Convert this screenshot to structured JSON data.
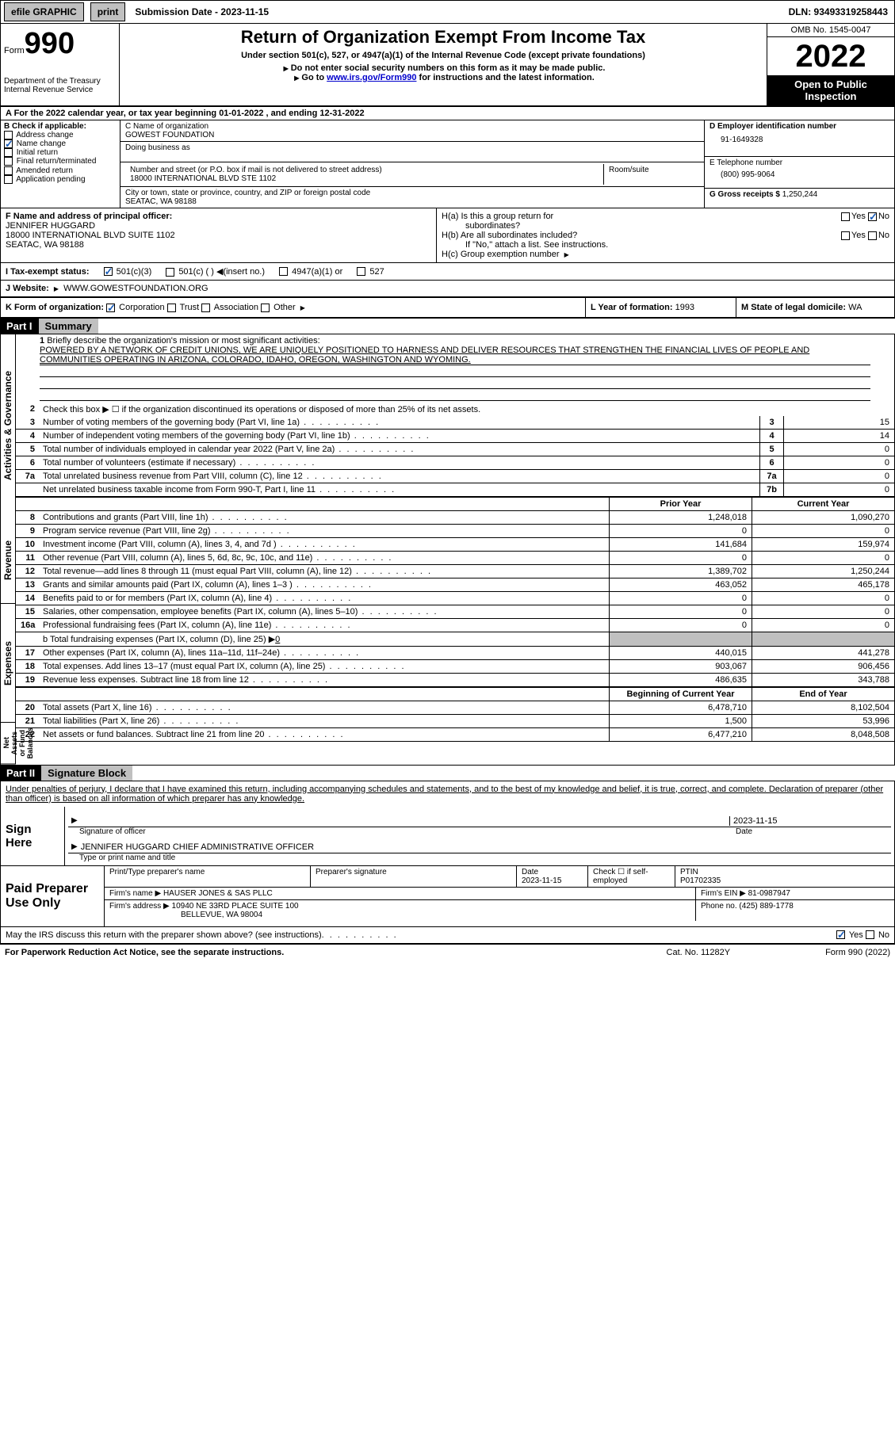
{
  "topbar": {
    "efile_label": "efile GRAPHIC",
    "print_label": "print",
    "submission_label": "Submission Date - 2023-11-15",
    "dln_label": "DLN: 93493319258443"
  },
  "header": {
    "form_word": "Form",
    "form_number": "990",
    "dept": "Department of the Treasury",
    "irs": "Internal Revenue Service",
    "title": "Return of Organization Exempt From Income Tax",
    "subtitle": "Under section 501(c), 527, or 4947(a)(1) of the Internal Revenue Code (except private foundations)",
    "instr1": "Do not enter social security numbers on this form as it may be made public.",
    "instr2_pre": "Go to ",
    "instr2_link": "www.irs.gov/Form990",
    "instr2_post": " for instructions and the latest information.",
    "omb": "OMB No. 1545-0047",
    "year": "2022",
    "open_public": "Open to Public Inspection"
  },
  "row_a": "A For the 2022 calendar year, or tax year beginning 01-01-2022    , and ending 12-31-2022",
  "section_b": {
    "b_label": "B Check if applicable:",
    "opts": [
      {
        "label": "Address change",
        "checked": false
      },
      {
        "label": "Name change",
        "checked": true
      },
      {
        "label": "Initial return",
        "checked": false
      },
      {
        "label": "Final return/terminated",
        "checked": false
      },
      {
        "label": "Amended return",
        "checked": false
      },
      {
        "label": "Application pending",
        "checked": false
      }
    ],
    "c_label": "C Name of organization",
    "c_val": "GOWEST FOUNDATION",
    "dba_label": "Doing business as",
    "addr_label": "Number and street (or P.O. box if mail is not delivered to street address)",
    "room_label": "Room/suite",
    "addr_val": "18000 INTERNATIONAL BLVD STE 1102",
    "city_label": "City or town, state or province, country, and ZIP or foreign postal code",
    "city_val": "SEATAC, WA  98188",
    "d_label": "D Employer identification number",
    "d_val": "91-1649328",
    "e_label": "E Telephone number",
    "e_val": "(800) 995-9064",
    "g_label": "G Gross receipts $",
    "g_val": "1,250,244"
  },
  "section_f": {
    "f_label": "F Name and address of principal officer:",
    "f_name": "JENNIFER HUGGARD",
    "f_addr1": "18000 INTERNATIONAL BLVD SUITE 1102",
    "f_addr2": "SEATAC, WA  98188",
    "ha_label": "H(a)  Is this a group return for",
    "ha_label2": "subordinates?",
    "hb_label": "H(b)  Are all subordinates included?",
    "hb_note": "If \"No,\" attach a list. See instructions.",
    "hc_label": "H(c)  Group exemption number",
    "yes": "Yes",
    "no": "No"
  },
  "tax_status": {
    "i_label": "I    Tax-exempt status:",
    "opt1": "501(c)(3)",
    "opt2": "501(c) (  )",
    "opt2b": "(insert no.)",
    "opt3": "4947(a)(1) or",
    "opt4": "527"
  },
  "website": {
    "j_label": "J    Website:",
    "j_val": "WWW.GOWESTFOUNDATION.ORG"
  },
  "korg": {
    "k_label": "K Form of organization:",
    "opts": [
      "Corporation",
      "Trust",
      "Association",
      "Other"
    ],
    "l_label": "L Year of formation:",
    "l_val": "1993",
    "m_label": "M State of legal domicile:",
    "m_val": "WA"
  },
  "parts": {
    "p1": "Part I",
    "p1_title": "Summary",
    "p2": "Part II",
    "p2_title": "Signature Block"
  },
  "summary": {
    "vlabels": [
      "Activities & Governance",
      "Revenue",
      "Expenses",
      "Net Assets or Fund Balances"
    ],
    "line1_label": "Briefly describe the organization's mission or most significant activities:",
    "mission": "POWERED BY A NETWORK OF CREDIT UNIONS, WE ARE UNIQUELY POSITIONED TO HARNESS AND DELIVER RESOURCES THAT STRENGTHEN THE FINANCIAL LIVES OF PEOPLE AND COMMUNITIES OPERATING IN ARIZONA, COLORADO, IDAHO, OREGON, WASHINGTON AND WYOMING.",
    "line2": "Check this box ▶ ☐  if the organization discontinued its operations or disposed of more than 25% of its net assets.",
    "lines_single": [
      {
        "n": "3",
        "t": "Number of voting members of the governing body (Part VI, line 1a)",
        "box": "3",
        "v": "15"
      },
      {
        "n": "4",
        "t": "Number of independent voting members of the governing body (Part VI, line 1b)",
        "box": "4",
        "v": "14"
      },
      {
        "n": "5",
        "t": "Total number of individuals employed in calendar year 2022 (Part V, line 2a)",
        "box": "5",
        "v": "0"
      },
      {
        "n": "6",
        "t": "Total number of volunteers (estimate if necessary)",
        "box": "6",
        "v": "0"
      },
      {
        "n": "7a",
        "t": "Total unrelated business revenue from Part VIII, column (C), line 12",
        "box": "7a",
        "v": "0"
      },
      {
        "n": "",
        "t": "Net unrelated business taxable income from Form 990-T, Part I, line 11",
        "box": "7b",
        "v": "0"
      }
    ],
    "prior_hdr": "Prior Year",
    "current_hdr": "Current Year",
    "lines_rev": [
      {
        "n": "8",
        "t": "Contributions and grants (Part VIII, line 1h)",
        "p": "1,248,018",
        "c": "1,090,270"
      },
      {
        "n": "9",
        "t": "Program service revenue (Part VIII, line 2g)",
        "p": "0",
        "c": "0"
      },
      {
        "n": "10",
        "t": "Investment income (Part VIII, column (A), lines 3, 4, and 7d )",
        "p": "141,684",
        "c": "159,974"
      },
      {
        "n": "11",
        "t": "Other revenue (Part VIII, column (A), lines 5, 6d, 8c, 9c, 10c, and 11e)",
        "p": "0",
        "c": "0"
      },
      {
        "n": "12",
        "t": "Total revenue—add lines 8 through 11 (must equal Part VIII, column (A), line 12)",
        "p": "1,389,702",
        "c": "1,250,244"
      }
    ],
    "lines_exp": [
      {
        "n": "13",
        "t": "Grants and similar amounts paid (Part IX, column (A), lines 1–3 )",
        "p": "463,052",
        "c": "465,178"
      },
      {
        "n": "14",
        "t": "Benefits paid to or for members (Part IX, column (A), line 4)",
        "p": "0",
        "c": "0"
      },
      {
        "n": "15",
        "t": "Salaries, other compensation, employee benefits (Part IX, column (A), lines 5–10)",
        "p": "0",
        "c": "0"
      },
      {
        "n": "16a",
        "t": "Professional fundraising fees (Part IX, column (A), line 11e)",
        "p": "0",
        "c": "0"
      }
    ],
    "line16b_label": "b  Total fundraising expenses (Part IX, column (D), line 25) ▶",
    "line16b_val": "0",
    "lines_exp2": [
      {
        "n": "17",
        "t": "Other expenses (Part IX, column (A), lines 11a–11d, 11f–24e)",
        "p": "440,015",
        "c": "441,278"
      },
      {
        "n": "18",
        "t": "Total expenses. Add lines 13–17 (must equal Part IX, column (A), line 25)",
        "p": "903,067",
        "c": "906,456"
      },
      {
        "n": "19",
        "t": "Revenue less expenses. Subtract line 18 from line 12",
        "p": "486,635",
        "c": "343,788"
      }
    ],
    "begin_hdr": "Beginning of Current Year",
    "end_hdr": "End of Year",
    "lines_net": [
      {
        "n": "20",
        "t": "Total assets (Part X, line 16)",
        "p": "6,478,710",
        "c": "8,102,504"
      },
      {
        "n": "21",
        "t": "Total liabilities (Part X, line 26)",
        "p": "1,500",
        "c": "53,996"
      },
      {
        "n": "22",
        "t": "Net assets or fund balances. Subtract line 21 from line 20",
        "p": "6,477,210",
        "c": "8,048,508"
      }
    ]
  },
  "signature": {
    "declaration": "Under penalties of perjury, I declare that I have examined this return, including accompanying schedules and statements, and to the best of my knowledge and belief, it is true, correct, and complete. Declaration of preparer (other than officer) is based on all information of which preparer has any knowledge.",
    "sign_here": "Sign Here",
    "sig_officer_label": "Signature of officer",
    "date_label": "Date",
    "officer_date": "2023-11-15",
    "officer_name": "JENNIFER HUGGARD  CHIEF ADMINISTRATIVE OFFICER",
    "name_title_label": "Type or print name and title",
    "paid_prep": "Paid Preparer Use Only",
    "prep_name_label": "Print/Type preparer's name",
    "prep_sig_label": "Preparer's signature",
    "prep_date_label": "Date",
    "prep_date": "2023-11-15",
    "check_if_label": "Check ☐ if self-employed",
    "ptin_label": "PTIN",
    "ptin": "P01702335",
    "firm_name_label": "Firm's name    ▶",
    "firm_name": "HAUSER JONES & SAS PLLC",
    "firm_ein_label": "Firm's EIN ▶",
    "firm_ein": "81-0987947",
    "firm_addr_label": "Firm's address ▶",
    "firm_addr1": "10940 NE 33RD PLACE SUITE 100",
    "firm_addr2": "BELLEVUE, WA  98004",
    "phone_label": "Phone no.",
    "phone": "(425) 889-1778",
    "discuss": "May the IRS discuss this return with the preparer shown above? (see instructions)",
    "yes": "Yes",
    "no": "No"
  },
  "footer": {
    "left": "For Paperwork Reduction Act Notice, see the separate instructions.",
    "mid": "Cat. No. 11282Y",
    "right": "Form 990 (2022)"
  }
}
